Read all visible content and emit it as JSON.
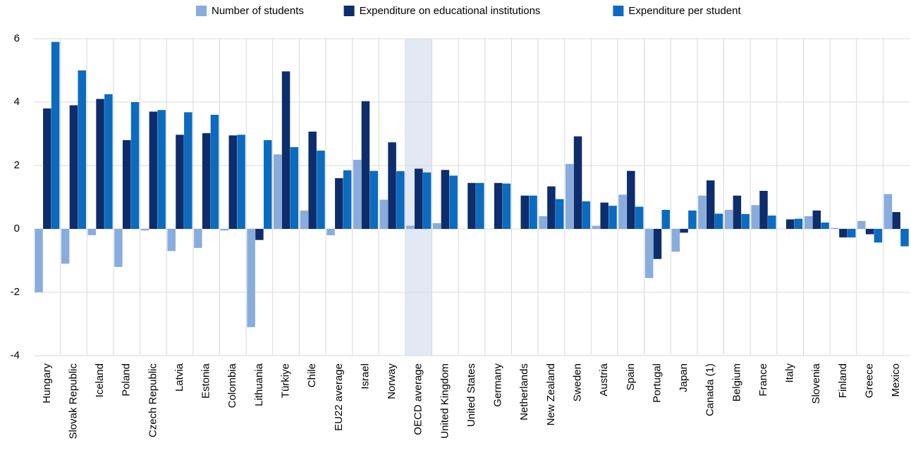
{
  "chart_data": {
    "type": "bar",
    "categories": [
      "Hungary",
      "Slovak Republic",
      "Iceland",
      "Poland",
      "Czech Republic",
      "Latvia",
      "Estonia",
      "Colombia",
      "Lithuania",
      "Türkiye",
      "Chile",
      "EU22 average",
      "Israel",
      "Norway",
      "OECD average",
      "United Kingdom",
      "United States",
      "Germany",
      "Netherlands",
      "New Zealand",
      "Sweden",
      "Austria",
      "Spain",
      "Portugal",
      "Japan",
      "Canada (1)",
      "Belgium",
      "France",
      "Italy",
      "Slovenia",
      "Finland",
      "Greece",
      "Mexico"
    ],
    "series": [
      {
        "name": "Number of students",
        "color": "#88acdc",
        "values": [
          -2.0,
          -1.1,
          -0.2,
          -1.2,
          -0.05,
          -0.7,
          -0.6,
          -0.05,
          -3.1,
          2.35,
          0.58,
          -0.2,
          2.18,
          0.92,
          0.1,
          0.18,
          0,
          0,
          0,
          0.4,
          2.05,
          0.1,
          1.08,
          -1.55,
          -0.72,
          1.05,
          0.6,
          0.75,
          0,
          0.4,
          0.03,
          0.25,
          1.1
        ]
      },
      {
        "name": "Expenditure on educational institutions",
        "color": "#0d2d6c",
        "values": [
          3.8,
          3.9,
          4.1,
          2.8,
          3.7,
          2.97,
          3.02,
          2.95,
          -0.35,
          4.97,
          3.07,
          1.6,
          4.03,
          2.73,
          1.9,
          1.86,
          1.45,
          1.45,
          1.05,
          1.34,
          2.92,
          0.83,
          1.83,
          -0.95,
          -0.12,
          1.53,
          1.05,
          1.2,
          0.3,
          0.58,
          -0.27,
          -0.17,
          0.53
        ]
      },
      {
        "name": "Expenditure per student",
        "color": "#0b6bbf",
        "values": [
          5.9,
          5.0,
          4.25,
          4.0,
          3.75,
          3.68,
          3.6,
          2.97,
          2.8,
          2.58,
          2.47,
          1.85,
          1.83,
          1.82,
          1.78,
          1.68,
          1.45,
          1.43,
          1.05,
          0.94,
          0.87,
          0.73,
          0.7,
          0.6,
          0.58,
          0.48,
          0.47,
          0.42,
          0.32,
          0.2,
          -0.27,
          -0.43,
          -0.55
        ]
      }
    ],
    "ylim": [
      -4,
      6
    ],
    "yticks": [
      -4,
      -2,
      0,
      2,
      4,
      6
    ],
    "grid": true,
    "highlight": "OECD average",
    "highlight_color": "#e2e8f4",
    "legend": "top"
  }
}
